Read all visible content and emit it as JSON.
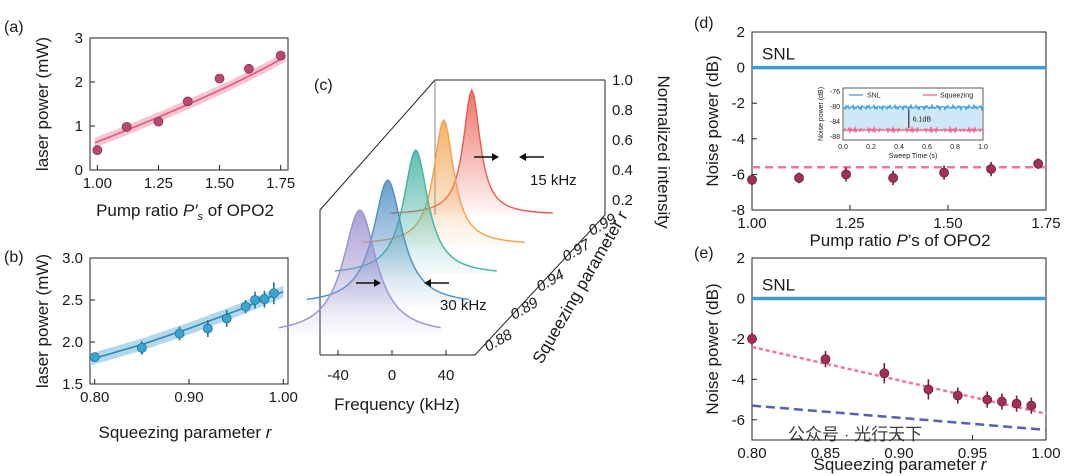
{
  "panels": {
    "a": "(a)",
    "b": "(b)",
    "c": "(c)",
    "d": "(d)",
    "e": "(e)"
  },
  "watermark": "公众号 · 光行天下",
  "colors": {
    "pink": "#e8557a",
    "pink_band": "#f6b8c8",
    "blue": "#3a9cc7",
    "blue_band": "#9fcfe6",
    "maroon": "#a03058",
    "snl": "#3d9fd0",
    "dash_pink": "#f07896",
    "dash_purple": "#5a5fb0"
  },
  "chart_data": [
    {
      "id": "a",
      "type": "scatter",
      "xlabel_pre": "Pump ratio ",
      "xlabel_sym": "P′",
      "xlabel_sub": "s",
      "xlabel_post": " of OPO2",
      "ylabel": "laser power (mW)",
      "xlim": [
        0.97,
        1.78
      ],
      "ylim": [
        0,
        3
      ],
      "xticks": [
        "1.00",
        "1.25",
        "1.50",
        "1.75"
      ],
      "xtick_values": [
        1.0,
        1.25,
        1.5,
        1.75
      ],
      "yticks": [
        "0",
        "1",
        "2",
        "3"
      ],
      "ytick_values": [
        0,
        1,
        2,
        3
      ],
      "series": [
        {
          "x": [
            1.0,
            1.12,
            1.25,
            1.37,
            1.5,
            1.62,
            1.75
          ],
          "y": [
            0.45,
            0.98,
            1.1,
            1.56,
            2.08,
            2.3,
            2.6
          ]
        }
      ],
      "fit": {
        "x": [
          0.99,
          1.1,
          1.25,
          1.4,
          1.55,
          1.7,
          1.77
        ],
        "y": [
          0.62,
          0.86,
          1.2,
          1.56,
          1.94,
          2.36,
          2.58
        ]
      }
    },
    {
      "id": "b",
      "type": "scatter",
      "xlabel": "Squeezing parameter r",
      "ylabel": "laser power (mW)",
      "xlim": [
        0.795,
        1.005
      ],
      "ylim": [
        1.5,
        3.0
      ],
      "xticks": [
        "0.80",
        "0.90",
        "1.00"
      ],
      "xtick_values": [
        0.8,
        0.9,
        1.0
      ],
      "yticks": [
        "1.5",
        "2.0",
        "2.5",
        "3.0"
      ],
      "ytick_values": [
        1.5,
        2.0,
        2.5,
        3.0
      ],
      "series": [
        {
          "x": [
            0.8,
            0.85,
            0.89,
            0.92,
            0.94,
            0.96,
            0.97,
            0.98,
            0.99
          ],
          "y": [
            1.82,
            1.93,
            2.1,
            2.16,
            2.28,
            2.42,
            2.5,
            2.51,
            2.58
          ],
          "err": [
            0.03,
            0.08,
            0.08,
            0.1,
            0.1,
            0.08,
            0.1,
            0.1,
            0.13
          ]
        }
      ],
      "fit": {
        "x": [
          0.795,
          0.85,
          0.9,
          0.95,
          1.0
        ],
        "y": [
          1.79,
          1.97,
          2.16,
          2.37,
          2.6
        ]
      }
    },
    {
      "id": "c",
      "type": "line",
      "xlabel": "Frequency (kHz)",
      "zlabel": "Normalized intensity",
      "ylabel": "Squeezing parameter r",
      "xticks": [
        "-40",
        "0",
        "40"
      ],
      "xtick_values": [
        -40,
        0,
        40
      ],
      "zticks": [
        "0.2",
        "0.4",
        "0.6",
        "0.8",
        "1.0"
      ],
      "ztick_values": [
        0.2,
        0.4,
        0.6,
        0.8,
        1.0
      ],
      "yticks": [
        "0.88",
        "0.89",
        "0.94",
        "0.97",
        "0.99"
      ],
      "series": [
        {
          "r": "0.88",
          "center_khz": 5,
          "fwhm_khz": 30,
          "color": "#9b8fd0"
        },
        {
          "r": "0.89",
          "center_khz": 5,
          "fwhm_khz": 26,
          "color": "#4f8fc2"
        },
        {
          "r": "0.94",
          "center_khz": 5,
          "fwhm_khz": 22,
          "color": "#43b3a2"
        },
        {
          "r": "0.97",
          "center_khz": 5,
          "fwhm_khz": 18,
          "color": "#f2a24c"
        },
        {
          "r": "0.99",
          "center_khz": 5,
          "fwhm_khz": 15,
          "color": "#ea5a4e"
        }
      ],
      "annotations": [
        "30 kHz",
        "15 kHz"
      ]
    },
    {
      "id": "d",
      "type": "scatter",
      "xlabel_pre": "Pump ratio ",
      "xlabel_sym": "P",
      "xlabel_post": "’s of OPO2",
      "ylabel": "Noise power (dB)",
      "xlim": [
        1.0,
        1.75
      ],
      "ylim": [
        -8,
        2
      ],
      "xticks": [
        "1.00",
        "1.25",
        "1.50",
        "1.75"
      ],
      "xtick_values": [
        1.0,
        1.25,
        1.5,
        1.75
      ],
      "yticks": [
        "2",
        "0",
        "-2",
        "-4",
        "-6",
        "-8"
      ],
      "ytick_values": [
        2,
        0,
        -2,
        -4,
        -6,
        -8
      ],
      "snl_label": "SNL",
      "snl_value": 0,
      "dashed_value": -5.6,
      "series": [
        {
          "x": [
            1.0,
            1.12,
            1.24,
            1.36,
            1.49,
            1.61,
            1.73
          ],
          "y": [
            -6.3,
            -6.2,
            -6.0,
            -6.2,
            -5.9,
            -5.7,
            -5.4
          ],
          "err": [
            0.3,
            0.3,
            0.4,
            0.4,
            0.4,
            0.4,
            0.3
          ]
        }
      ],
      "inset": {
        "xlabel": "Sweep Time (s)",
        "ylabel": "Noise power (dB)",
        "xticks": [
          "0.0",
          "0.2",
          "0.4",
          "0.6",
          "0.8",
          "1.0"
        ],
        "xtick_values": [
          0,
          0.2,
          0.4,
          0.6,
          0.8,
          1.0
        ],
        "yticks": [
          "-76",
          "-80",
          "-84",
          "-88"
        ],
        "ytick_values": [
          -76,
          -80,
          -84,
          -88
        ],
        "ylim": [
          -89,
          -75
        ],
        "legend": [
          "SNL",
          "Squeezing"
        ],
        "snl_level": -80.2,
        "squeezing_level": -86.3,
        "annotation": "6.1dB"
      }
    },
    {
      "id": "e",
      "type": "scatter",
      "xlabel": "Squeezing parameter r",
      "ylabel": "Noise power (dB)",
      "xlim": [
        0.8,
        1.0
      ],
      "ylim": [
        -7,
        2
      ],
      "xticks": [
        "0.80",
        "0.85",
        "0.90",
        "0.95",
        "1.00"
      ],
      "xtick_values": [
        0.8,
        0.85,
        0.9,
        0.95,
        1.0
      ],
      "yticks": [
        "2",
        "0",
        "-2",
        "-4",
        "-6"
      ],
      "ytick_values": [
        2,
        0,
        -2,
        -4,
        -6
      ],
      "snl_label": "SNL",
      "snl_value": 0,
      "series": [
        {
          "x": [
            0.8,
            0.85,
            0.89,
            0.92,
            0.94,
            0.96,
            0.97,
            0.98,
            0.99
          ],
          "y": [
            -2.0,
            -3.0,
            -3.7,
            -4.5,
            -4.8,
            -5.0,
            -5.1,
            -5.2,
            -5.3
          ],
          "err": [
            0.3,
            0.4,
            0.5,
            0.5,
            0.4,
            0.4,
            0.4,
            0.4,
            0.4
          ]
        }
      ],
      "fit_pink": {
        "x": [
          0.8,
          1.0
        ],
        "y": [
          -2.4,
          -5.7
        ]
      },
      "fit_purple": {
        "x": [
          0.8,
          1.0
        ],
        "y": [
          -5.3,
          -6.5
        ]
      }
    }
  ]
}
